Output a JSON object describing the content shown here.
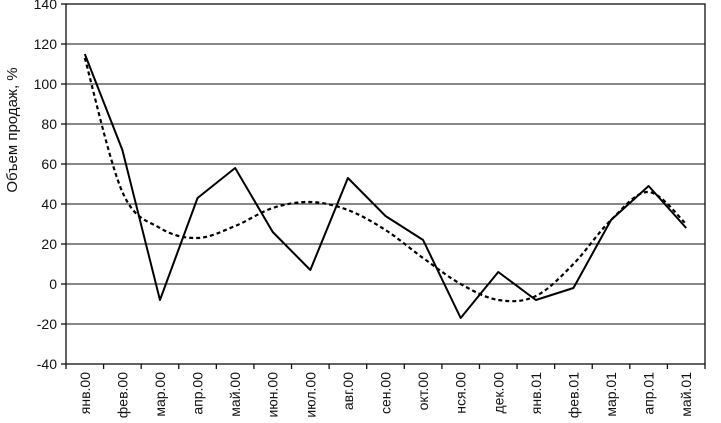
{
  "chart_data": {
    "type": "line",
    "ylabel": "Объем продаж, %",
    "xlabel": "",
    "ylim": [
      -40,
      140
    ],
    "yticks": [
      -40,
      -20,
      0,
      20,
      40,
      60,
      80,
      100,
      120,
      140
    ],
    "grid": true,
    "categories": [
      "янв.00",
      "фев.00",
      "мар.00",
      "апр.00",
      "май.00",
      "июн.00",
      "июл.00",
      "авг.00",
      "сен.00",
      "окт.00",
      "нся.00",
      "дек.00",
      "янв.01",
      "фев.01",
      "мар.01",
      "апр.01",
      "май.01"
    ],
    "series": [
      {
        "style": "solid",
        "values": [
          115,
          67,
          -8,
          43,
          58,
          26,
          7,
          53,
          34,
          22,
          -17,
          6,
          -8,
          -2,
          32,
          49,
          28
        ]
      },
      {
        "style": "dashed",
        "values": [
          113,
          46,
          28,
          23,
          29,
          38,
          41,
          37,
          27,
          13,
          0,
          -8,
          -6,
          10,
          32,
          46,
          30
        ]
      }
    ]
  }
}
